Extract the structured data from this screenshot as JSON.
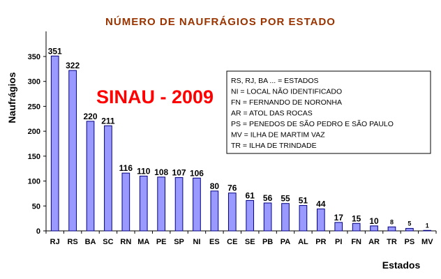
{
  "chart_data": {
    "type": "bar",
    "title": "NÚMERO DE NAUFRÁGIOS POR ESTADO",
    "xlabel": "Estados",
    "ylabel": "Naufrágios",
    "ylim": [
      0,
      350
    ],
    "yticks": [
      0,
      50,
      100,
      150,
      200,
      250,
      300,
      350
    ],
    "grid": false,
    "categories": [
      "RJ",
      "RS",
      "BA",
      "SC",
      "RN",
      "MA",
      "PE",
      "SP",
      "NI",
      "ES",
      "CE",
      "SE",
      "PB",
      "PA",
      "AL",
      "PR",
      "PI",
      "FN",
      "AR",
      "TR",
      "PS",
      "MV"
    ],
    "values": [
      351,
      322,
      220,
      211,
      116,
      110,
      108,
      107,
      106,
      80,
      76,
      61,
      56,
      55,
      51,
      44,
      17,
      15,
      10,
      8,
      5,
      1
    ],
    "annotation": "SINAU - 2009",
    "legend_notes": [
      "RS, RJ, BA ... = ESTADOS",
      "NI =   LOCAL NÃO IDENTIFICADO",
      "FN =  FERNANDO DE NORONHA",
      "AR = ATOL DAS ROCAS",
      "PS =  PENEDOS DE SÃO PEDRO E SÃO PAULO",
      "MV = ILHA DE MARTIM VAZ",
      "TR  = ILHA DE TRINDADE"
    ]
  },
  "colors": {
    "bar_fill": "#9999ff",
    "bar_stroke": "#000080",
    "title": "#993300",
    "annotation": "#ff0000",
    "text": "#000000"
  }
}
